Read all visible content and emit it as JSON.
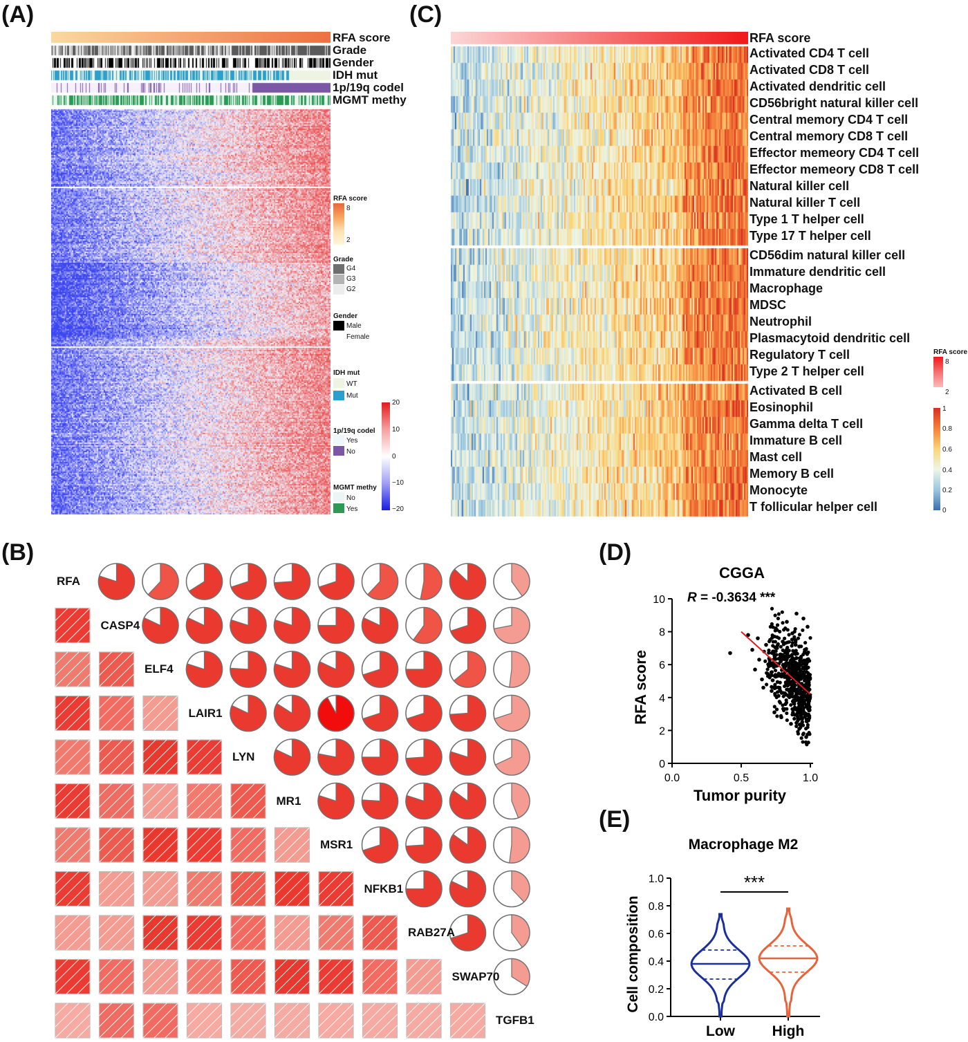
{
  "panels": {
    "A": {
      "letter": "(A)",
      "annotation_tracks": [
        "RFA score",
        "Grade",
        "Gender",
        "IDH mut",
        "1p/19q codel",
        "MGMT methy"
      ],
      "legends": {
        "rfa": {
          "title": "RFA score",
          "high": "8",
          "low": "2"
        },
        "grade": {
          "title": "Grade",
          "items": [
            "G4",
            "G3",
            "G2"
          ]
        },
        "gender": {
          "title": "Gender",
          "items": [
            "Male",
            "Female"
          ]
        },
        "idh": {
          "title": "IDH mut",
          "items": [
            "WT",
            "Mut"
          ]
        },
        "codel": {
          "title": "1p/19q codel",
          "items": [
            "Yes",
            "No"
          ]
        },
        "mgmt": {
          "title": "MGMT methy",
          "items": [
            "No",
            "Yes"
          ]
        },
        "scale": {
          "ticks": [
            "20",
            "10",
            "0",
            "−10",
            "−20"
          ]
        }
      },
      "colors": {
        "low": "#2a2ae6",
        "mid": "#f2f2fa",
        "high": "#e62a2a"
      }
    },
    "C": {
      "letter": "(C)",
      "top_track": "RFA score",
      "cells": [
        "Activated CD4 T cell",
        "Activated CD8 T cell",
        "Activated dendritic cell",
        "CD56bright natural killer cell",
        "Central memory CD4 T cell",
        "Central memory CD8 T cell",
        "Effector memeory CD4 T cell",
        "Effector memeory CD8 T cell",
        "Natural killer cell",
        "Natural killer T cell",
        "Type 1 T helper cell",
        "Type 17 T helper cell",
        "CD56dim natural killer cell",
        "Immature dendritic cell",
        "Macrophage",
        "MDSC",
        "Neutrophil",
        "Plasmacytoid dendritic cell",
        "Regulatory T cell",
        "Type 2 T helper cell",
        "Activated B cell",
        "Eosinophil",
        "Gamma delta T cell",
        "Immature  B cell",
        "Mast cell",
        "Memory B cell",
        "Monocyte",
        "T follicular helper cell"
      ],
      "legends": {
        "rfa": {
          "title": "RFA score",
          "high": "8",
          "low": "2"
        },
        "scale": {
          "ticks": [
            "1",
            "0.8",
            "0.6",
            "0.4",
            "0.2",
            "0"
          ]
        }
      }
    },
    "B": {
      "letter": "(B)",
      "genes": [
        "RFA",
        "CASP4",
        "ELF4",
        "LAIR1",
        "LYN",
        "MR1",
        "MSR1",
        "NFKB1",
        "RAB27A",
        "SWAP70",
        "TGFB1"
      ],
      "upper_fractions": [
        [
          0.8,
          0.62,
          0.66,
          0.7,
          0.74,
          0.7,
          0.62,
          0.53,
          0.87,
          0.4
        ],
        [
          0.82,
          0.82,
          0.8,
          0.8,
          0.75,
          0.82,
          0.6,
          0.7,
          0.72
        ],
        [
          0.8,
          0.76,
          0.8,
          0.82,
          0.7,
          0.75,
          0.64,
          0.52
        ],
        [
          0.82,
          0.84,
          0.92,
          0.7,
          0.7,
          0.74,
          0.7
        ],
        [
          0.82,
          0.78,
          0.75,
          0.74,
          0.8,
          0.68
        ],
        [
          0.8,
          0.76,
          0.8,
          0.85,
          0.44
        ],
        [
          0.7,
          0.74,
          0.85,
          0.52
        ],
        [
          0.75,
          0.82,
          0.38
        ],
        [
          0.7,
          0.4
        ],
        [
          0.34
        ]
      ]
    },
    "D": {
      "letter": "(D)",
      "chart_data": {
        "type": "scatter",
        "title": "CGGA",
        "annotation": "R = -0.3634 ***",
        "annotation_r": "R",
        "annotation_rest": " = -0.3634 ***",
        "xlabel": "Tumor purity",
        "ylabel": "RFA score",
        "xlim": [
          0.0,
          1.0
        ],
        "ylim": [
          0,
          10
        ],
        "xticks": [
          0.0,
          0.5,
          1.0
        ],
        "xtick_labels": [
          "0.0",
          "0.5",
          "1.0"
        ],
        "yticks": [
          0,
          2,
          4,
          6,
          8,
          10
        ],
        "fit_line": {
          "x": [
            0.5,
            1.0
          ],
          "y": [
            8.0,
            4.2
          ]
        },
        "points": [
          [
            0.42,
            6.7
          ],
          [
            0.55,
            7.8
          ],
          [
            0.58,
            6.9
          ],
          [
            0.6,
            5.7
          ],
          [
            0.62,
            7.6
          ],
          [
            0.63,
            6.3
          ],
          [
            0.65,
            5.1
          ],
          [
            0.66,
            4.6
          ],
          [
            0.68,
            7.2
          ],
          [
            0.7,
            5.9
          ],
          [
            0.72,
            4.4
          ],
          [
            0.73,
            6.8
          ],
          [
            0.74,
            3.1
          ],
          [
            0.75,
            8.2
          ],
          [
            0.76,
            5.3
          ],
          [
            0.77,
            4.1
          ],
          [
            0.78,
            6.6
          ],
          [
            0.79,
            2.8
          ],
          [
            0.8,
            7.4
          ],
          [
            0.81,
            5.8
          ],
          [
            0.82,
            3.6
          ],
          [
            0.83,
            8.6
          ],
          [
            0.84,
            4.9
          ],
          [
            0.85,
            6.1
          ],
          [
            0.86,
            2.4
          ],
          [
            0.87,
            7.9
          ],
          [
            0.88,
            5.2
          ],
          [
            0.89,
            3.3
          ],
          [
            0.9,
            9.1
          ],
          [
            0.9,
            6.4
          ],
          [
            0.91,
            4.5
          ],
          [
            0.92,
            2.1
          ],
          [
            0.92,
            7.1
          ],
          [
            0.93,
            5.6
          ],
          [
            0.94,
            3.8
          ],
          [
            0.95,
            8.8
          ],
          [
            0.95,
            4.2
          ],
          [
            0.96,
            6.9
          ],
          [
            0.97,
            1.6
          ],
          [
            0.97,
            3.0
          ],
          [
            0.98,
            5.0
          ],
          [
            0.98,
            8.3
          ]
        ]
      }
    },
    "E": {
      "letter": "(E)",
      "chart_data": {
        "type": "violin",
        "title": "Macrophage M2",
        "ylabel": "Cell composition",
        "categories": [
          "Low",
          "High"
        ],
        "colors": [
          "#1a2f9c",
          "#e8623a"
        ],
        "ylim": [
          0.0,
          1.0
        ],
        "yticks": [
          "0.0",
          "0.2",
          "0.4",
          "0.6",
          "0.8",
          "1.0"
        ],
        "median": [
          0.38,
          0.42
        ],
        "q1": [
          0.27,
          0.32
        ],
        "q3": [
          0.48,
          0.51
        ],
        "min": [
          0.0,
          0.0
        ],
        "max": [
          0.74,
          0.78
        ],
        "significance": "***"
      }
    }
  }
}
